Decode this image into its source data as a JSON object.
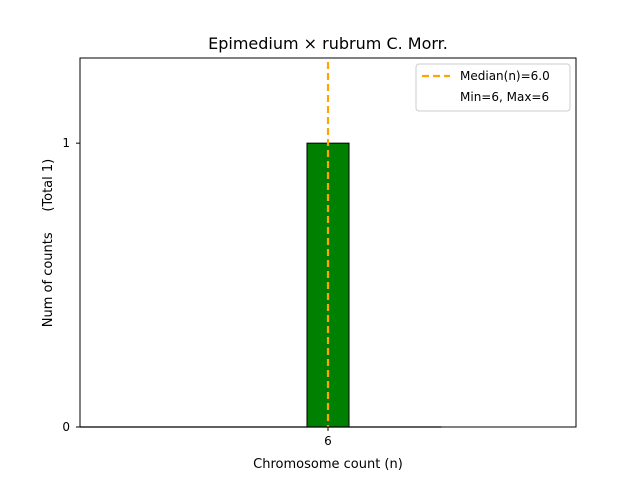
{
  "chart_data": {
    "type": "bar",
    "title": "Epimedium × rubrum C. Morr.",
    "xlabel": "Chromosome count (n)",
    "ylabel": "Num of counts     (Total 1)",
    "categories": [
      "6"
    ],
    "x": [
      6
    ],
    "values": [
      1
    ],
    "xlim": [
      0.1,
      11.9
    ],
    "ylim": [
      0,
      1.3
    ],
    "xticks": [
      6
    ],
    "yticks": [
      0,
      1
    ],
    "bar_width": 1,
    "bar_color": "#008000",
    "bar_edge_color": "#000000",
    "median": 6.0,
    "median_color": "#FFA500",
    "legend": {
      "placement": "top-right",
      "entries": [
        "Median(n)=6.0",
        "Min=6, Max=6"
      ]
    },
    "grid": false
  }
}
